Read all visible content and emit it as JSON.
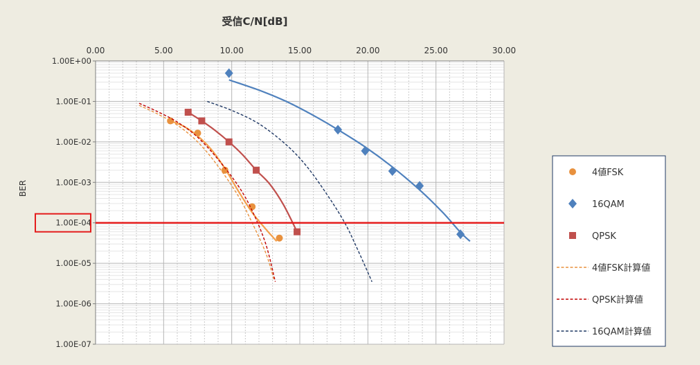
{
  "chart_data": {
    "type": "scatter",
    "title": "受信C/N[dB]",
    "xlabel": "",
    "ylabel": "BER",
    "x_axis_position": "top",
    "xlim": [
      0,
      30
    ],
    "x_ticks": [
      0,
      5,
      10,
      15,
      20,
      25,
      30
    ],
    "x_tick_labels": [
      "0.00",
      "5.00",
      "10.00",
      "15.00",
      "20.00",
      "25.00",
      "30.00"
    ],
    "y_scale": "log",
    "ylim": [
      1e-07,
      1
    ],
    "y_ticks": [
      1,
      0.1,
      0.01,
      0.001,
      0.0001,
      1e-05,
      1e-06,
      1e-07
    ],
    "y_tick_labels": [
      "1.00E+00",
      "1.00E-01",
      "1.00E-02",
      "1.00E-03",
      "1.00E-04",
      "1.00E-05",
      "1.00E-06",
      "1.00E-07"
    ],
    "highlighted_y_tick": "1.00E-04",
    "grid": true,
    "legend_position": "right",
    "reference_line": {
      "y": 0.0001,
      "color": "#e41c1c"
    },
    "series": [
      {
        "name": "4値FSK",
        "kind": "markers",
        "marker": "circle",
        "color": "#e8913e",
        "x": [
          5.5,
          7.5,
          9.5,
          11.5,
          13.5
        ],
        "y": [
          0.033,
          0.0165,
          0.002,
          0.00025,
          4.2e-05
        ],
        "trend": {
          "color": "#f3a04d",
          "x": [
            5.5,
            6.5,
            7.5,
            8.5,
            9.5,
            10.5,
            11.5,
            12.5,
            13.3
          ],
          "y": [
            0.033,
            0.024,
            0.014,
            0.0065,
            0.0022,
            0.0006,
            0.00018,
            7e-05,
            3.5e-05
          ]
        }
      },
      {
        "name": "16QAM",
        "kind": "markers",
        "marker": "diamond",
        "color": "#4f81bd",
        "x": [
          9.8,
          17.8,
          19.8,
          21.8,
          23.8,
          26.8
        ],
        "y": [
          0.5,
          0.02,
          0.006,
          0.0019,
          0.00082,
          5.2e-05
        ],
        "trend": {
          "color": "#4f81bd",
          "x": [
            9.8,
            12,
            14,
            16,
            17.8,
            19.8,
            21.8,
            23.8,
            25.5,
            26.8,
            27.5
          ],
          "y": [
            0.34,
            0.19,
            0.1,
            0.045,
            0.02,
            0.0075,
            0.0024,
            0.00065,
            0.00018,
            5.8e-05,
            3.5e-05
          ]
        }
      },
      {
        "name": "QPSK",
        "kind": "markers",
        "marker": "square",
        "color": "#c0504d",
        "x": [
          6.8,
          7.8,
          9.8,
          11.8,
          14.8
        ],
        "y": [
          0.054,
          0.033,
          0.01,
          0.002,
          6e-05
        ],
        "trend": {
          "color": "#c0504d",
          "x": [
            6.8,
            7.8,
            8.8,
            9.8,
            10.8,
            11.8,
            12.8,
            13.8,
            14.8
          ],
          "y": [
            0.054,
            0.033,
            0.019,
            0.01,
            0.0048,
            0.002,
            0.0009,
            0.00028,
            6e-05
          ]
        }
      },
      {
        "name": "4値FSK計算値",
        "kind": "dashed-line",
        "color": "#e8913e",
        "x": [
          3.2,
          4.5,
          6,
          7.5,
          9,
          10.5,
          11.5,
          12.5,
          13.1
        ],
        "y": [
          0.08,
          0.05,
          0.026,
          0.01,
          0.0025,
          0.00045,
          0.0001,
          1.8e-05,
          4e-06
        ]
      },
      {
        "name": "QPSK計算値",
        "kind": "dashed-line",
        "color": "#c00000",
        "x": [
          3.2,
          4.5,
          6,
          7.5,
          9,
          10.5,
          11.5,
          12.5,
          13.2
        ],
        "y": [
          0.09,
          0.057,
          0.031,
          0.013,
          0.0037,
          0.0008,
          0.0002,
          3e-05,
          3.5e-06
        ]
      },
      {
        "name": "16QAM計算値",
        "kind": "dashed-line",
        "color": "#1f3864",
        "x": [
          8.2,
          10,
          12,
          14,
          15.5,
          17,
          18.3,
          19.3,
          20.3
        ],
        "y": [
          0.1,
          0.06,
          0.028,
          0.0085,
          0.0025,
          0.0005,
          0.0001,
          2e-05,
          3.5e-06
        ]
      }
    ]
  }
}
